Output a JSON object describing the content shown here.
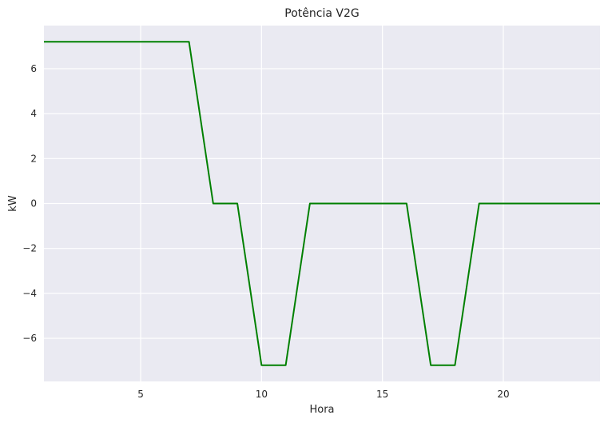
{
  "chart_data": {
    "type": "line",
    "title": "Potência V2G",
    "xlabel": "Hora",
    "ylabel": "kW",
    "xlim": [
      1,
      24
    ],
    "ylim": [
      -7.92,
      7.92
    ],
    "grid": true,
    "background_color": "#eaeaf2",
    "grid_color": "#ffffff",
    "x_ticks": [
      5,
      10,
      15,
      20
    ],
    "x_tick_labels": [
      "5",
      "10",
      "15",
      "20"
    ],
    "y_ticks": [
      -6,
      -4,
      -2,
      0,
      2,
      4,
      6
    ],
    "y_tick_labels": [
      "−6",
      "−4",
      "−2",
      "0",
      "2",
      "4",
      "6"
    ],
    "series": [
      {
        "color": "#008000",
        "x": [
          1,
          2,
          3,
          4,
          5,
          6,
          7,
          8,
          9,
          10,
          11,
          12,
          13,
          14,
          15,
          16,
          17,
          18,
          19,
          20,
          21,
          22,
          23,
          24
        ],
        "y": [
          7.2,
          7.2,
          7.2,
          7.2,
          7.2,
          7.2,
          7.2,
          0,
          0,
          -7.2,
          -7.2,
          0,
          0,
          0,
          0,
          0,
          -7.2,
          -7.2,
          0,
          0,
          0,
          0,
          0,
          0
        ]
      }
    ]
  }
}
